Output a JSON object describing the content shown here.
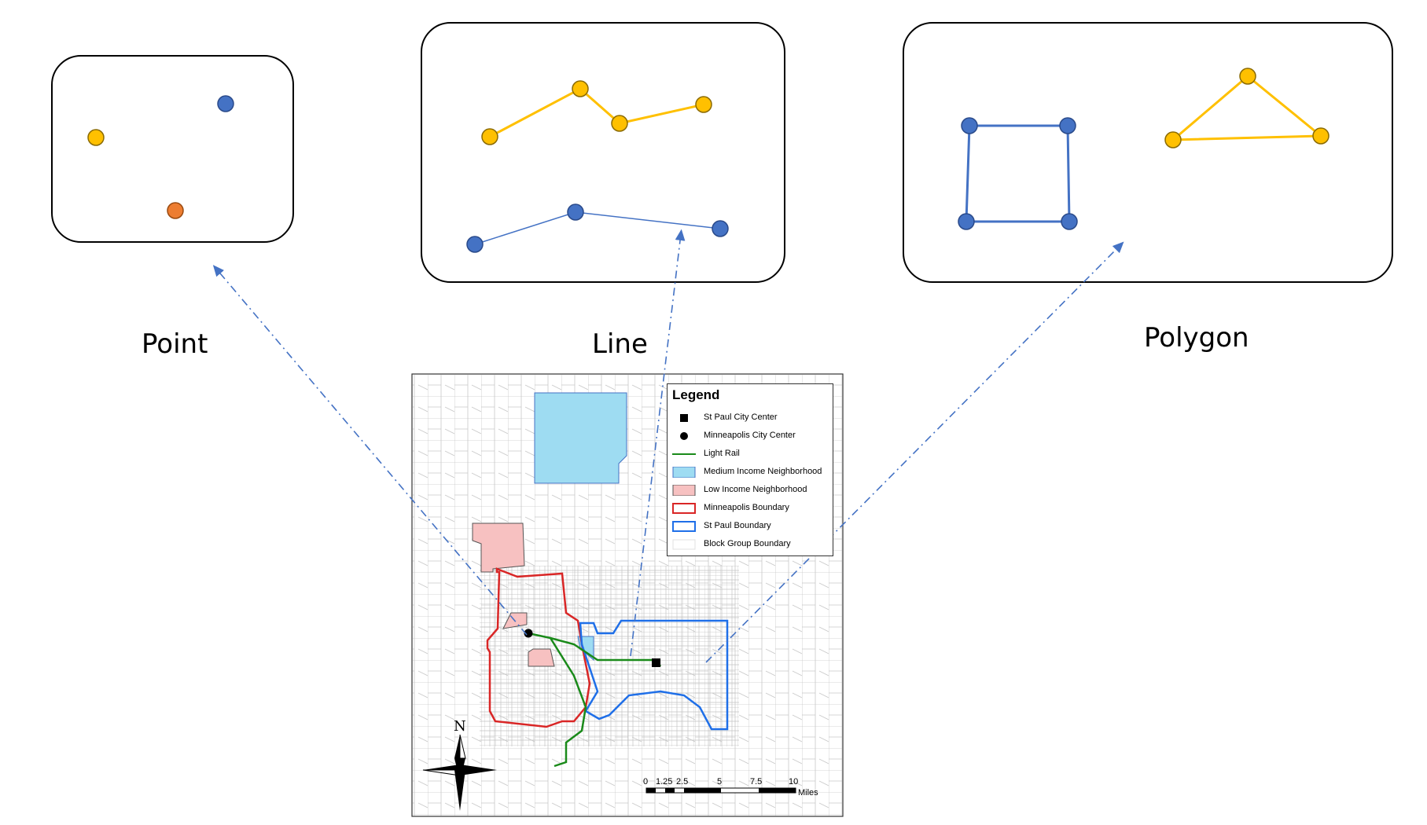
{
  "panels": {
    "point": {
      "caption": "Point"
    },
    "line": {
      "caption": "Line"
    },
    "polygon": {
      "caption": "Polygon"
    }
  },
  "colors": {
    "yellow": "#FFC000",
    "blue": "#4472C4",
    "orange": "#ED7D31",
    "light_rail": "#1A8A1A",
    "mpls_boundary": "#D92626",
    "stpaul_boundary": "#1F6FE8",
    "medium_income": "#9EDCF2",
    "low_income": "#F7C1C1",
    "block_group": "#BFBFBF"
  },
  "map": {
    "legend": {
      "title": "Legend",
      "items": [
        {
          "label": "St Paul City Center",
          "symbol": "square"
        },
        {
          "label": "Minneapolis City Center",
          "symbol": "circle"
        },
        {
          "label": "Light Rail",
          "symbol": "line"
        },
        {
          "label": "Medium Income Neighborhood",
          "symbol": "fill-blue"
        },
        {
          "label": "Low Income Neighborhood",
          "symbol": "fill-pink"
        },
        {
          "label": "Minneapolis Boundary",
          "symbol": "outline-red"
        },
        {
          "label": "St Paul Boundary",
          "symbol": "outline-blue"
        },
        {
          "label": "Block Group Boundary",
          "symbol": "outline-gray"
        }
      ]
    },
    "north_label": "N",
    "scale_bar": {
      "ticks": [
        "0",
        "1.25",
        "2.5",
        "5",
        "7.5",
        "10"
      ],
      "unit": "Miles"
    }
  }
}
